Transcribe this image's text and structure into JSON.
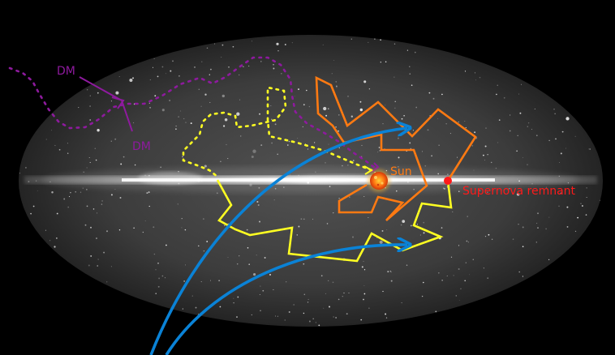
{
  "colors": {
    "background": "#000000",
    "sky": "#3a3a3a",
    "plane": "#e8e8e8",
    "dark_matter": "#8e1a9e",
    "blue_track": "#0a82d6",
    "orange_track": "#ff7a12",
    "yellow_track": "#ffff22",
    "sun_fill": "#ff5a10",
    "sun_glow": "#ffc02a",
    "remnant": "#ff1a1a"
  },
  "labels": {
    "dm_top": "DM",
    "dm_bottom": "DM",
    "sun": "Sun",
    "supernova": "Supernova remnant"
  },
  "icons": {
    "sun": "sun-icon",
    "supernova": "supernova-remnant-dot"
  }
}
